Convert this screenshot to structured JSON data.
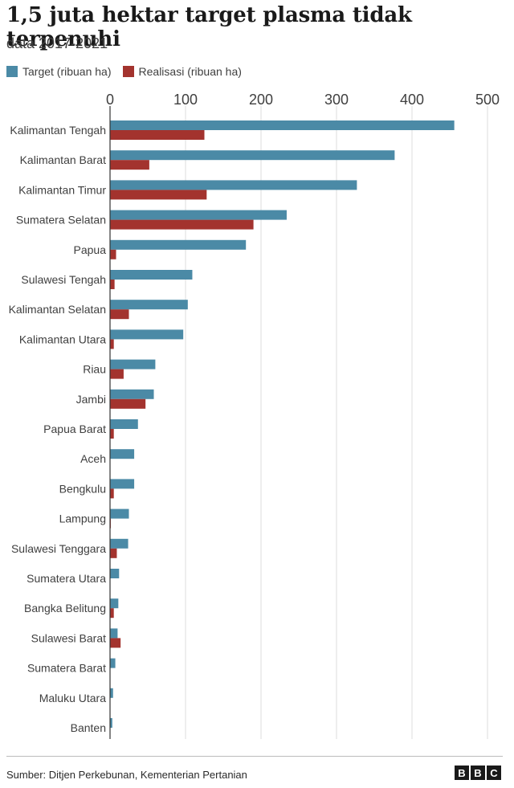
{
  "title": "1,5 juta hektar target plasma tidak terpenuhi",
  "subtitle": "data 2017-2021",
  "legend": {
    "target_label": "Target (ribuan ha)",
    "realisasi_label": "Realisasi (ribuan ha)"
  },
  "colors": {
    "target": "#4b8aa6",
    "realisasi": "#a3332e",
    "grid": "#dddddd",
    "axis": "#333333"
  },
  "source": "Sumber: Ditjen Perkebunan, Kementerian Pertanian",
  "logo": {
    "letters": [
      "B",
      "B",
      "C"
    ]
  },
  "chart_data": {
    "type": "bar",
    "orientation": "horizontal",
    "title": "1,5 juta hektar target plasma tidak terpenuhi",
    "subtitle": "data 2017-2021",
    "xlim": [
      0,
      500
    ],
    "ticks": [
      0,
      100,
      200,
      300,
      400,
      500
    ],
    "grid": true,
    "legend_position": "top-left",
    "categories": [
      "Kalimantan Tengah",
      "Kalimantan Barat",
      "Kalimantan Timur",
      "Sumatera Selatan",
      "Papua",
      "Sulawesi Tengah",
      "Kalimantan Selatan",
      "Kalimantan Utara",
      "Riau",
      "Jambi",
      "Papua Barat",
      "Aceh",
      "Bengkulu",
      "Lampung",
      "Sulawesi Tenggara",
      "Sumatera Utara",
      "Bangka Belitung",
      "Sulawesi Barat",
      "Sumatera Barat",
      "Maluku Utara",
      "Banten"
    ],
    "series": [
      {
        "name": "Target (ribuan ha)",
        "values": [
          456,
          377,
          327,
          234,
          180,
          109,
          103,
          97,
          60,
          58,
          37,
          32,
          32,
          25,
          24,
          12,
          11,
          10,
          7,
          4,
          3
        ]
      },
      {
        "name": "Realisasi (ribuan ha)",
        "values": [
          125,
          52,
          128,
          190,
          8,
          6,
          25,
          5,
          18,
          47,
          5,
          0,
          5,
          1,
          9,
          0,
          5,
          14,
          0,
          0,
          0
        ]
      }
    ]
  }
}
